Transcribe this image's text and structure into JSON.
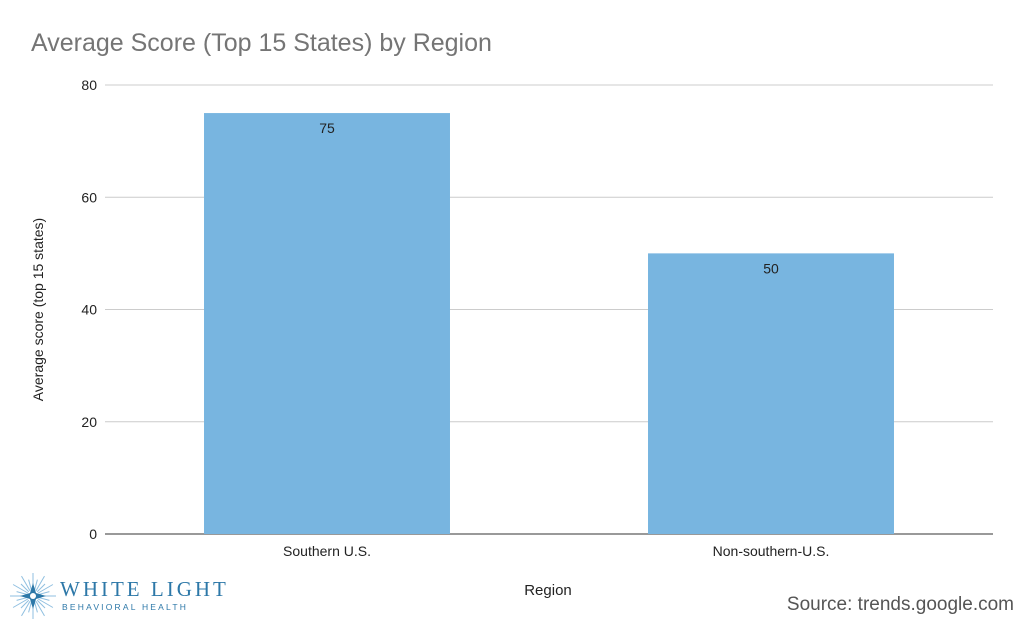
{
  "chart_data": {
    "type": "bar",
    "title": "Average Score (Top 15 States) by Region",
    "xlabel": "Region",
    "ylabel": "Average score (top 15 states)",
    "categories": [
      "Southern U.S.",
      "Non-southern-U.S."
    ],
    "values": [
      75,
      50
    ],
    "data_labels": [
      "75",
      "50"
    ],
    "ylim": [
      0,
      80
    ],
    "yticks": [
      0,
      20,
      40,
      60,
      80
    ],
    "grid": true,
    "legend": "none",
    "bar_color": "#78b5e0"
  },
  "branding": {
    "logo_name": "WHITE LIGHT",
    "logo_subtitle": "BEHAVIORAL HEALTH",
    "logo_color": "#2d78a8"
  },
  "source": "Source: trends.google.com"
}
